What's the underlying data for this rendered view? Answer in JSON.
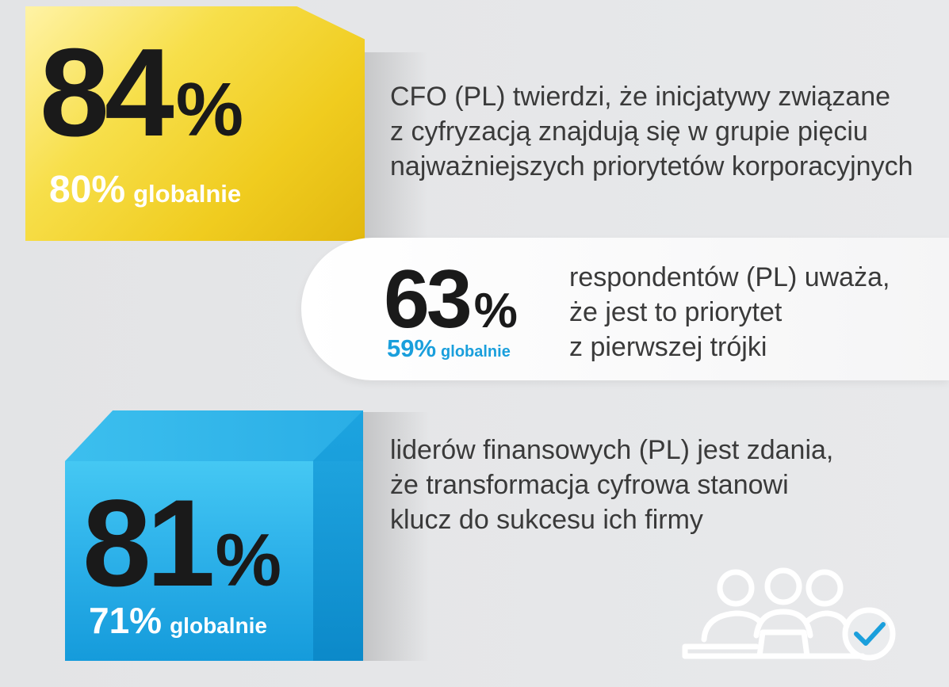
{
  "stats": [
    {
      "value": "84",
      "percent_sign": "%",
      "global_value": "80%",
      "global_label": "globalnie",
      "description_lines": [
        "CFO (PL) twierdzi, że inicjatywy związane",
        "z cyfryzacją znajdują się w grupie pięciu",
        "najważniejszych priorytetów korporacyjnych"
      ]
    },
    {
      "value": "63",
      "percent_sign": "%",
      "global_value": "59%",
      "global_label": "globalnie",
      "description_lines": [
        "respondentów (PL) uważa,",
        "że jest to priorytet",
        "z pierwszej trójki"
      ]
    },
    {
      "value": "81",
      "percent_sign": "%",
      "global_value": "71%",
      "global_label": "globalnie",
      "description_lines": [
        "liderów finansowych (PL) jest zdania,",
        "że transformacja cyfrowa stanowi",
        "klucz do sukcesu ich firmy"
      ]
    }
  ],
  "colors": {
    "yellow": "#f0cc1f",
    "blue": "#2eb2ea",
    "accent_blue_text": "#1a9fdc",
    "dark_text": "#1a1a1a",
    "body_text": "#3a3a3a"
  },
  "icons": {
    "team": "team-with-checkmark-icon"
  }
}
